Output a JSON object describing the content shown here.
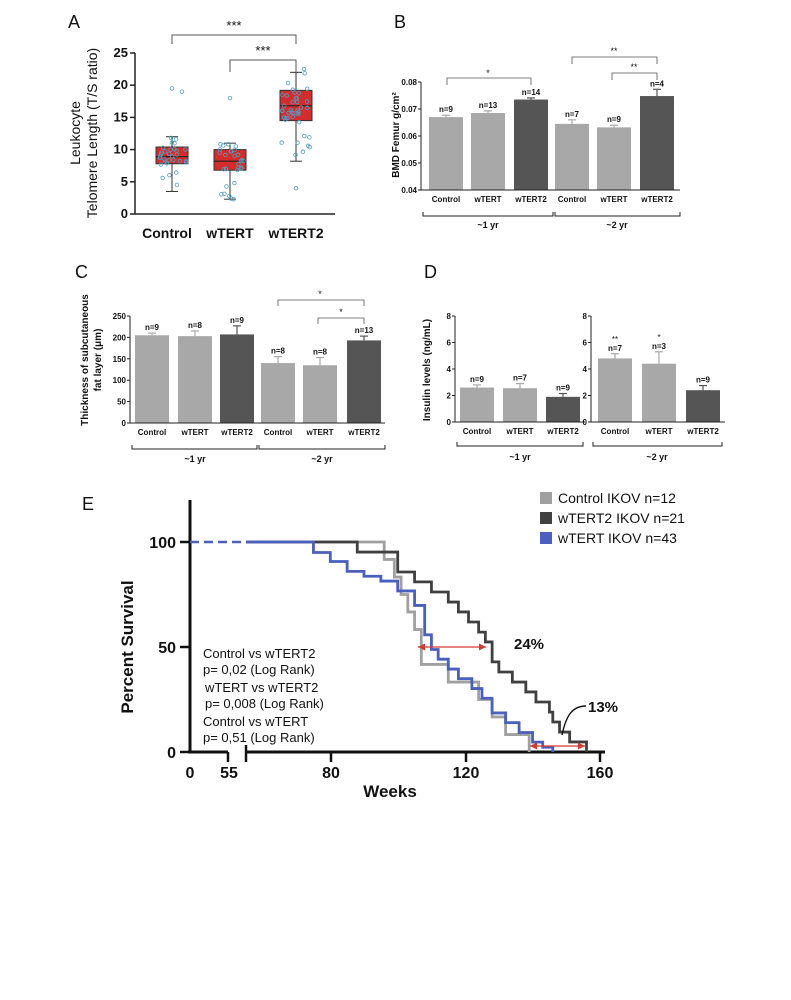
{
  "colors": {
    "box_fill": "#d62b2b",
    "dot_stroke": "#4e9fc4",
    "bar_light": "#a8a8a8",
    "bar_dark": "#555555",
    "km_control": "#a0a0a0",
    "km_wtert2": "#404040",
    "km_wtert": "#4a5fbf",
    "arrow": "#d53a32"
  },
  "panels": {
    "A": {
      "letter": "A",
      "ylabel_line1": "Leukocyte",
      "ylabel_line2": "Telomere Length (T/S ratio)",
      "y_ticks": [
        "0",
        "5",
        "10",
        "15",
        "20",
        "25"
      ],
      "ylim": [
        0,
        25
      ],
      "categories": [
        "Control",
        "wTERT",
        "wTERT2"
      ],
      "boxes": [
        {
          "name": "Control",
          "min": 3.5,
          "q1": 7.8,
          "median": 8.9,
          "q3": 10.4,
          "max": 12.0
        },
        {
          "name": "wTERT",
          "min": 2.3,
          "q1": 6.8,
          "median": 8.2,
          "q3": 10.0,
          "max": 11.0
        },
        {
          "name": "wTERT2",
          "min": 8.2,
          "q1": 14.5,
          "median": 16.8,
          "q3": 19.2,
          "max": 22.0
        }
      ],
      "sig": [
        "***",
        "***"
      ]
    },
    "B": {
      "letter": "B",
      "ylabel": "BMD Femur g/cm²",
      "y_ticks": [
        "0.04",
        "0.05",
        "0.06",
        "0.07",
        "0.08"
      ],
      "ylim": [
        0.04,
        0.08
      ],
      "groups": [
        {
          "label": "~1 yr",
          "bars": [
            {
              "name": "Control",
              "value": 0.067,
              "err": 0.0007,
              "n": "n=9"
            },
            {
              "name": "wTERT",
              "value": 0.0685,
              "err": 0.0008,
              "n": "n=13"
            },
            {
              "name": "wTERT2",
              "value": 0.0735,
              "err": 0.0006,
              "n": "n=14"
            }
          ]
        },
        {
          "label": "~2 yr",
          "bars": [
            {
              "name": "Control",
              "value": 0.0645,
              "err": 0.0015,
              "n": "n=7"
            },
            {
              "name": "wTERT",
              "value": 0.0632,
              "err": 0.0008,
              "n": "n=9"
            },
            {
              "name": "wTERT2",
              "value": 0.0748,
              "err": 0.0025,
              "n": "n=4"
            }
          ]
        }
      ],
      "sig": [
        "*",
        "**",
        "**"
      ]
    },
    "C": {
      "letter": "C",
      "ylabel_line1": "Thickness of subcutaneous",
      "ylabel_line2": "fat  layer (μm)",
      "y_ticks": [
        "0",
        "50",
        "100",
        "150",
        "200",
        "250"
      ],
      "ylim": [
        0,
        250
      ],
      "groups": [
        {
          "label": "~1 yr",
          "bars": [
            {
              "name": "Control",
              "value": 205,
              "err": 5,
              "n": "n=9"
            },
            {
              "name": "wTERT",
              "value": 203,
              "err": 12,
              "n": "n=8"
            },
            {
              "name": "wTERT2",
              "value": 207,
              "err": 20,
              "n": "n=9"
            }
          ]
        },
        {
          "label": "~2 yr",
          "bars": [
            {
              "name": "Control",
              "value": 140,
              "err": 15,
              "n": "n=8"
            },
            {
              "name": "wTERT",
              "value": 135,
              "err": 18,
              "n": "n=8"
            },
            {
              "name": "wTERT2",
              "value": 193,
              "err": 10,
              "n": "n=13"
            }
          ]
        }
      ],
      "sig": [
        "*",
        "*"
      ]
    },
    "D": {
      "letter": "D",
      "ylabel": "Insulin levels (ng/mL)",
      "y_ticks": [
        "0",
        "2",
        "4",
        "6",
        "8"
      ],
      "ylim": [
        0,
        8
      ],
      "groups": [
        {
          "label": "~1 yr",
          "bars": [
            {
              "name": "Control",
              "value": 2.6,
              "err": 0.2,
              "n": "n=9",
              "star": ""
            },
            {
              "name": "wTERT",
              "value": 2.55,
              "err": 0.35,
              "n": "n=7",
              "star": ""
            },
            {
              "name": "wTERT2",
              "value": 1.9,
              "err": 0.25,
              "n": "n=9",
              "star": ""
            }
          ]
        },
        {
          "label": "~2 yr",
          "bars": [
            {
              "name": "Control",
              "value": 4.8,
              "err": 0.35,
              "n": "n=7",
              "star": "**"
            },
            {
              "name": "wTERT",
              "value": 4.4,
              "err": 0.9,
              "n": "n=3",
              "star": "*"
            },
            {
              "name": "wTERT2",
              "value": 2.4,
              "err": 0.35,
              "n": "n=9",
              "star": ""
            }
          ]
        }
      ]
    },
    "E": {
      "letter": "E",
      "ylabel": "Percent Survival",
      "xlabel": "Weeks",
      "y_ticks": [
        "0",
        "50",
        "100"
      ],
      "x_ticks": [
        "0",
        "55",
        "80",
        "120",
        "160"
      ],
      "legend": [
        {
          "label": "Control IKOV n=12",
          "color": "#a0a0a0"
        },
        {
          "label": "wTERT2 IKOV n=21",
          "color": "#404040"
        },
        {
          "label": "wTERT IKOV n=43",
          "color": "#4a5fbf"
        }
      ],
      "stats": [
        {
          "line1": "Control vs wTERT2",
          "line2": "p= 0,02 (Log Rank)"
        },
        {
          "line1": "wTERT vs wTERT2",
          "line2": "p= 0,008 (Log Rank)"
        },
        {
          "line1": "Control vs wTERT",
          "line2": "p= 0,51 (Log Rank)"
        }
      ],
      "annotations": [
        "24%",
        "13%"
      ],
      "series": [
        {
          "name": "Control",
          "x": [
            0,
            87,
            96,
            99,
            101,
            103,
            105,
            107,
            115,
            120,
            124,
            128,
            132,
            136,
            139
          ],
          "y": [
            100,
            100,
            91.7,
            83.3,
            75,
            66.7,
            58.3,
            41.7,
            33.3,
            33.3,
            25,
            16.7,
            8.3,
            8.3,
            0
          ]
        },
        {
          "name": "wTERT2",
          "x": [
            0,
            80,
            88,
            100,
            105,
            110,
            115,
            118,
            121,
            124,
            126,
            128,
            130,
            134,
            138,
            141,
            145,
            146,
            148,
            151,
            154,
            156
          ],
          "y": [
            100,
            100,
            95.2,
            85.7,
            81,
            76.2,
            71.4,
            66.7,
            61.9,
            57.1,
            52.4,
            42.9,
            38.1,
            33.3,
            28.6,
            23.8,
            19,
            14.3,
            9.5,
            4.8,
            4.8,
            0
          ]
        },
        {
          "name": "wTERT",
          "x": [
            0,
            68,
            75,
            80,
            85,
            90,
            95,
            100,
            105,
            108,
            110,
            112,
            115,
            118,
            122,
            125,
            128,
            132,
            136,
            140,
            143,
            146
          ],
          "y": [
            100,
            100,
            95,
            90.7,
            86,
            83.7,
            81.4,
            76.7,
            69.8,
            55.8,
            48.8,
            44.2,
            39.5,
            34.9,
            30.2,
            25.6,
            18.6,
            14,
            9.3,
            4.7,
            2.3,
            0
          ]
        }
      ]
    }
  }
}
